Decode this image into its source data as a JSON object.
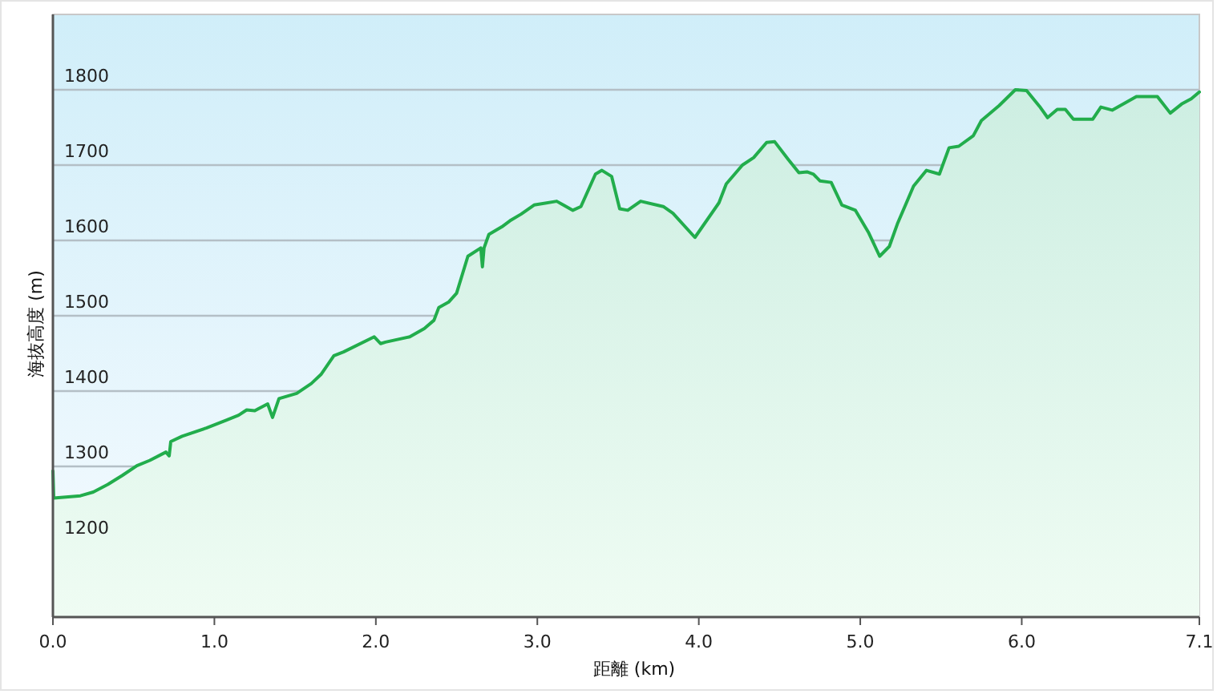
{
  "chart_data": {
    "type": "area",
    "xlabel": "距離 (km)",
    "ylabel": "海抜高度 (m)",
    "xlim": [
      0,
      7.1
    ],
    "xticks": [
      {
        "value": 0,
        "label": "0.0"
      },
      {
        "value": 1,
        "label": "1.0"
      },
      {
        "value": 2,
        "label": "2.0"
      },
      {
        "value": 3,
        "label": "3.0"
      },
      {
        "value": 4,
        "label": "4.0"
      },
      {
        "value": 5,
        "label": "5.0"
      },
      {
        "value": 6,
        "label": "6.0"
      },
      {
        "value": 7.1,
        "label": "7.1"
      }
    ],
    "ylim": [
      1100,
      1900
    ],
    "yticks": [
      1200,
      1300,
      1400,
      1500,
      1600,
      1700,
      1800
    ],
    "grid": "y",
    "series": [
      {
        "color": "#22ad4c",
        "x": [
          0,
          0.005,
          0.17,
          0.25,
          0.34,
          0.43,
          0.52,
          0.6,
          0.7,
          0.72,
          0.73,
          0.8,
          0.95,
          1.07,
          1.15,
          1.2,
          1.25,
          1.33,
          1.36,
          1.4,
          1.51,
          1.6,
          1.66,
          1.74,
          1.8,
          1.99,
          2.03,
          2.06,
          2.21,
          2.3,
          2.36,
          2.39,
          2.45,
          2.5,
          2.57,
          2.65,
          2.66,
          2.67,
          2.7,
          2.78,
          2.83,
          2.9,
          2.98,
          3.12,
          3.22,
          3.27,
          3.36,
          3.4,
          3.46,
          3.51,
          3.56,
          3.64,
          3.78,
          3.84,
          3.976,
          4.125,
          4.17,
          4.27,
          4.34,
          4.42,
          4.47,
          4.556,
          4.62,
          4.67,
          4.71,
          4.75,
          4.82,
          4.886,
          4.97,
          5.05,
          5.12,
          5.18,
          5.23,
          5.33,
          5.41,
          5.49,
          5.55,
          5.61,
          5.7,
          5.75,
          5.86,
          5.96,
          6.03,
          6.11,
          6.16,
          6.22,
          6.27,
          6.32,
          6.44,
          6.49,
          6.56,
          6.71,
          6.84,
          6.92,
          6.99,
          7.05,
          7.1
        ],
        "values": [
          1294,
          1258,
          1261,
          1266,
          1276,
          1288,
          1301,
          1308,
          1319,
          1314,
          1333,
          1340,
          1351,
          1361,
          1368,
          1375,
          1374,
          1383,
          1365,
          1390,
          1397,
          1410,
          1422,
          1447,
          1452,
          1472,
          1463,
          1465,
          1472,
          1483,
          1494,
          1511,
          1518,
          1530,
          1579,
          1590,
          1565,
          1590,
          1608,
          1618,
          1626,
          1635,
          1647,
          1652,
          1640,
          1645,
          1688,
          1693,
          1685,
          1642,
          1640,
          1652,
          1645,
          1636,
          1604,
          1650,
          1675,
          1700,
          1710,
          1730,
          1731,
          1707,
          1690,
          1691,
          1688,
          1679,
          1677,
          1647,
          1640,
          1611,
          1579,
          1592,
          1622,
          1672,
          1693,
          1688,
          1723,
          1725,
          1739,
          1759,
          1779,
          1800,
          1799,
          1778,
          1763,
          1774,
          1774,
          1761,
          1761,
          1777,
          1773,
          1791,
          1791,
          1769,
          1781,
          1788,
          1797
        ]
      }
    ]
  }
}
